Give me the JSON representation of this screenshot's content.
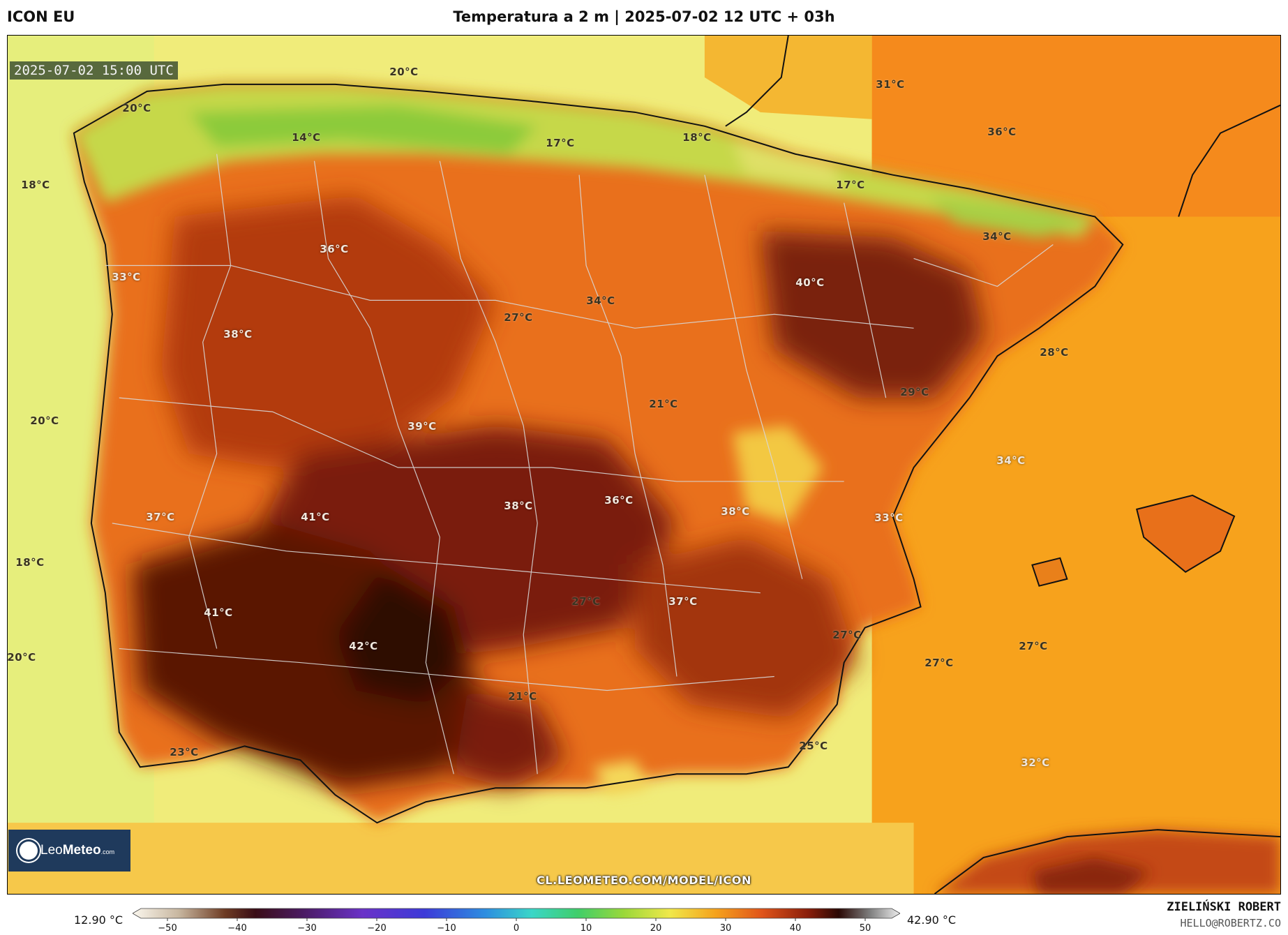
{
  "header": {
    "model": "ICON EU",
    "title": "Temperatura a 2 m | 2025-07-02 12 UTC + 03h"
  },
  "map": {
    "valid_time": "2025-07-02 15:00 UTC",
    "source_url": "CL.LEOMETEO.COM/MODEL/ICON",
    "logo": {
      "brand_light": "Leo",
      "brand_bold": "Meteo",
      "suffix": ".com",
      "icon": "sun-icon"
    },
    "labels": [
      {
        "text": "20°C",
        "tone": "dark"
      },
      {
        "text": "20°C",
        "tone": "dark"
      },
      {
        "text": "14°C",
        "tone": "dark"
      },
      {
        "text": "17°C",
        "tone": "dark"
      },
      {
        "text": "18°C",
        "tone": "dark"
      },
      {
        "text": "31°C",
        "tone": "dark"
      },
      {
        "text": "36°C",
        "tone": "dark"
      },
      {
        "text": "18°C",
        "tone": "dark"
      },
      {
        "text": "17°C",
        "tone": "dark"
      },
      {
        "text": "36°C",
        "tone": "light"
      },
      {
        "text": "34°C",
        "tone": "dark"
      },
      {
        "text": "33°C",
        "tone": "light"
      },
      {
        "text": "40°C",
        "tone": "light"
      },
      {
        "text": "34°C",
        "tone": "dark"
      },
      {
        "text": "27°C",
        "tone": "dark"
      },
      {
        "text": "38°C",
        "tone": "light"
      },
      {
        "text": "28°C",
        "tone": "dark"
      },
      {
        "text": "29°C",
        "tone": "dark"
      },
      {
        "text": "21°C",
        "tone": "dark"
      },
      {
        "text": "20°C",
        "tone": "dark"
      },
      {
        "text": "39°C",
        "tone": "light"
      },
      {
        "text": "34°C",
        "tone": "light"
      },
      {
        "text": "36°C",
        "tone": "light"
      },
      {
        "text": "38°C",
        "tone": "light"
      },
      {
        "text": "38°C",
        "tone": "light"
      },
      {
        "text": "37°C",
        "tone": "light"
      },
      {
        "text": "41°C",
        "tone": "light"
      },
      {
        "text": "33°C",
        "tone": "light"
      },
      {
        "text": "18°C",
        "tone": "dark"
      },
      {
        "text": "41°C",
        "tone": "light"
      },
      {
        "text": "27°C",
        "tone": "dark"
      },
      {
        "text": "37°C",
        "tone": "light"
      },
      {
        "text": "27°C",
        "tone": "dark"
      },
      {
        "text": "42°C",
        "tone": "light"
      },
      {
        "text": "27°C",
        "tone": "dark"
      },
      {
        "text": "20°C",
        "tone": "dark"
      },
      {
        "text": "27°C",
        "tone": "dark"
      },
      {
        "text": "21°C",
        "tone": "dark"
      },
      {
        "text": "23°C",
        "tone": "dark"
      },
      {
        "text": "25°C",
        "tone": "dark"
      },
      {
        "text": "32°C",
        "tone": "light"
      }
    ]
  },
  "colorbar": {
    "min_label": "12.90 °C",
    "max_label": "42.90 °C",
    "ticks": [
      "−50",
      "−40",
      "−30",
      "−20",
      "−10",
      "0",
      "10",
      "20",
      "30",
      "40",
      "50"
    ]
  },
  "credit": {
    "name": "ZIELIŃSKI ROBERT",
    "email": "HELLO@ROBERTZ.CO"
  }
}
